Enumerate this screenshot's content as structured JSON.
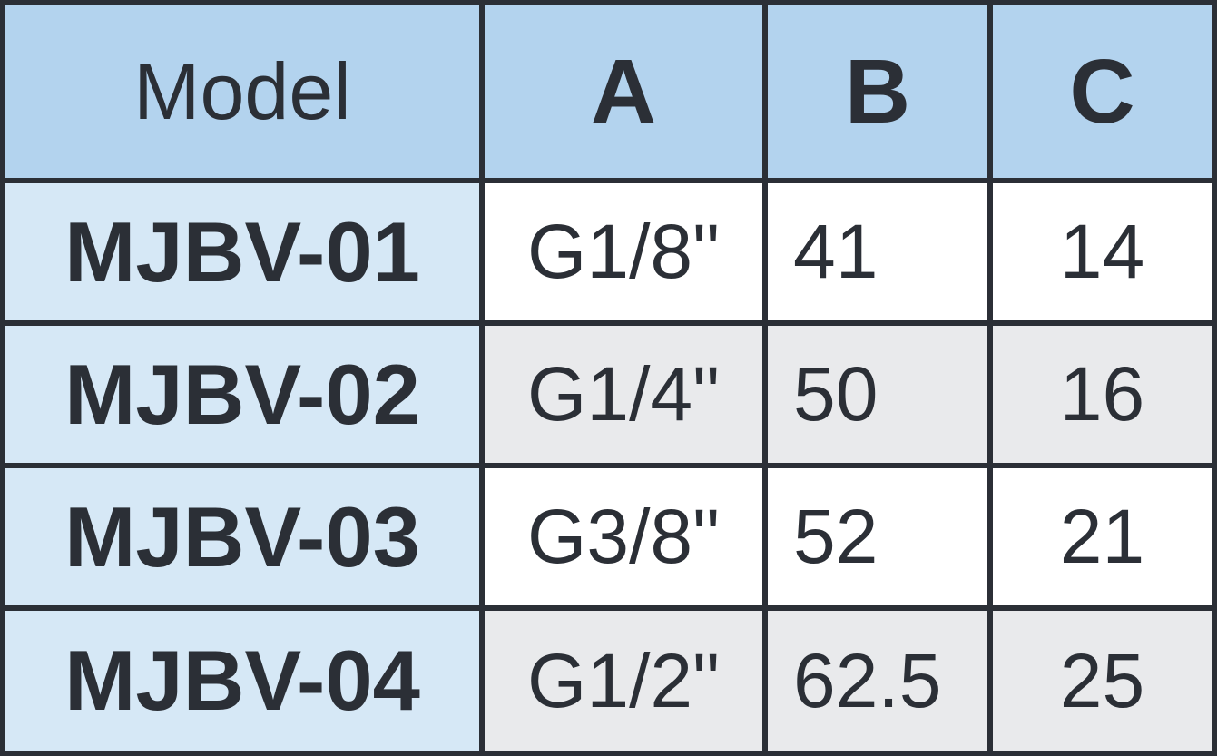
{
  "table": {
    "header": [
      "Model",
      "A",
      "B",
      "C"
    ],
    "rows": [
      [
        "MJBV-01",
        "G1/8\"",
        41,
        14
      ],
      [
        "MJBV-02",
        "G1/4\"",
        50,
        16
      ],
      [
        "MJBV-03",
        "G3/8\"",
        52,
        21
      ],
      [
        "MJBV-04",
        "G1/2\"",
        62.5,
        25
      ]
    ]
  }
}
